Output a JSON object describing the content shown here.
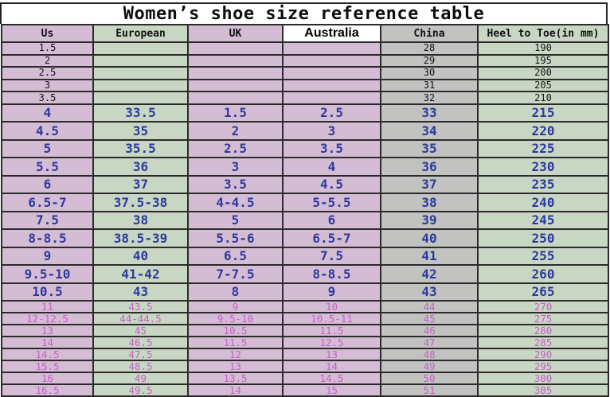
{
  "title": "Women’s shoe size reference table",
  "colors": {
    "thistle_column": "#d5bcd5",
    "green_column": "#c8d6c4",
    "gray_column": "#c2c2c0",
    "blue_row_text": "#2b3a9b",
    "pink_row_text": "#c75fc7",
    "plain_row_text": "#151515",
    "grid_border": "#2b2b2b",
    "selected_cell_bg": "#ffffff"
  },
  "table": {
    "columns": [
      {
        "key": "us",
        "label": "Us"
      },
      {
        "key": "european",
        "label": "European"
      },
      {
        "key": "uk",
        "label": "UK"
      },
      {
        "key": "australia",
        "label": "Australia"
      },
      {
        "key": "china",
        "label": "China"
      },
      {
        "key": "heel_to_toe",
        "label": "Heel to Toe(in mm)"
      }
    ],
    "rows": [
      {
        "style": "plain",
        "cells": [
          "1.5",
          "",
          "",
          "",
          "28",
          "190"
        ]
      },
      {
        "style": "plain",
        "cells": [
          "2",
          "",
          "",
          "",
          "29",
          "195"
        ]
      },
      {
        "style": "plain",
        "cells": [
          "2.5",
          "",
          "",
          "",
          "30",
          "200"
        ]
      },
      {
        "style": "plain",
        "cells": [
          "3",
          "",
          "",
          "",
          "31",
          "205"
        ]
      },
      {
        "style": "plain",
        "cells": [
          "3.5",
          "",
          "",
          "",
          "32",
          "210"
        ]
      },
      {
        "style": "blue",
        "cells": [
          "4",
          "33.5",
          "1.5",
          "2.5",
          "33",
          "215"
        ]
      },
      {
        "style": "blue",
        "cells": [
          "4.5",
          "35",
          "2",
          "3",
          "34",
          "220"
        ]
      },
      {
        "style": "blue",
        "cells": [
          "5",
          "35.5",
          "2.5",
          "3.5",
          "35",
          "225"
        ]
      },
      {
        "style": "blue",
        "cells": [
          "5.5",
          "36",
          "3",
          "4",
          "36",
          "230"
        ]
      },
      {
        "style": "blue",
        "cells": [
          "6",
          "37",
          "3.5",
          "4.5",
          "37",
          "235"
        ]
      },
      {
        "style": "blue",
        "cells": [
          "6.5-7",
          "37.5-38",
          "4-4.5",
          "5-5.5",
          "38",
          "240"
        ]
      },
      {
        "style": "blue",
        "cells": [
          "7.5",
          "38",
          "5",
          "6",
          "39",
          "245"
        ]
      },
      {
        "style": "blue",
        "cells": [
          "8-8.5",
          "38.5-39",
          "5.5-6",
          "6.5-7",
          "40",
          "250"
        ]
      },
      {
        "style": "blue",
        "cells": [
          "9",
          "40",
          "6.5",
          "7.5",
          "41",
          "255"
        ]
      },
      {
        "style": "blue",
        "cells": [
          "9.5-10",
          "41-42",
          "7-7.5",
          "8-8.5",
          "42",
          "260"
        ]
      },
      {
        "style": "blue",
        "cells": [
          "10.5",
          "43",
          "8",
          "9",
          "43",
          "265"
        ]
      },
      {
        "style": "pink",
        "cells": [
          "11",
          "43.5",
          "9",
          "10",
          "44",
          "270"
        ]
      },
      {
        "style": "pink",
        "cells": [
          "12-12.5",
          "44-44.5",
          "9.5-10",
          "10.5-11",
          "45",
          "275"
        ]
      },
      {
        "style": "pink",
        "cells": [
          "13",
          "45",
          "10.5",
          "11.5",
          "46",
          "280"
        ]
      },
      {
        "style": "pink",
        "cells": [
          "14",
          "46.5",
          "11.5",
          "12.5",
          "47",
          "285"
        ]
      },
      {
        "style": "pink",
        "cells": [
          "14.5",
          "47.5",
          "12",
          "13",
          "48",
          "290"
        ]
      },
      {
        "style": "pink",
        "cells": [
          "15.5",
          "48.5",
          "13",
          "14",
          "49",
          "295"
        ]
      },
      {
        "style": "pink",
        "cells": [
          "16",
          "49",
          "13.5",
          "14.5",
          "50",
          "300"
        ]
      },
      {
        "style": "pink",
        "cells": [
          "16.5",
          "49.5",
          "14",
          "15",
          "51",
          "305"
        ]
      }
    ]
  }
}
